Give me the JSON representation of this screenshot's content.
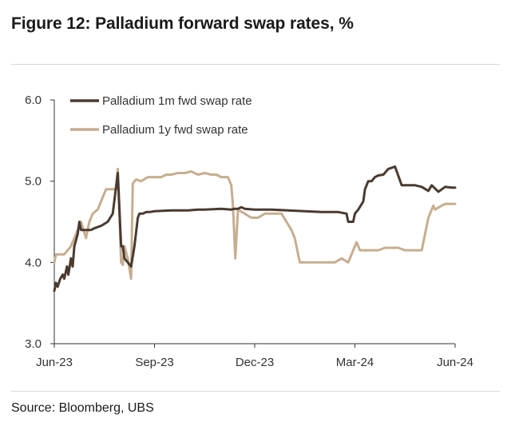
{
  "title": "Figure 12: Palladium forward swap rates, %",
  "source": "Source: Bloomberg, UBS",
  "chart_data": {
    "type": "line",
    "title": "Figure 12: Palladium forward swap rates, %",
    "xlabel": "",
    "ylabel": "",
    "ylim": [
      3.0,
      6.0
    ],
    "yticks": [
      "3.0",
      "4.0",
      "5.0",
      "6.0"
    ],
    "x_range": [
      0,
      12
    ],
    "xtick_labels": [
      "Jun-23",
      "Sep-23",
      "Dec-23",
      "Mar-24",
      "Jun-24"
    ],
    "xtick_positions": [
      0,
      3,
      6,
      9,
      12
    ],
    "legend": "top-left",
    "grid": false,
    "series": [
      {
        "name": "Palladium 1m fwd swap rate",
        "color": "#4a3a30",
        "x": [
          0.0,
          0.05,
          0.1,
          0.18,
          0.25,
          0.3,
          0.38,
          0.42,
          0.5,
          0.55,
          0.6,
          0.7,
          0.75,
          0.8,
          0.9,
          1.0,
          1.1,
          1.2,
          1.4,
          1.6,
          1.75,
          1.9,
          2.0,
          2.05,
          2.1,
          2.2,
          2.3,
          2.4,
          2.5,
          2.55,
          2.65,
          2.75,
          2.85,
          3.0,
          3.5,
          4.0,
          4.3,
          4.5,
          5.0,
          5.3,
          5.4,
          5.5,
          5.6,
          5.7,
          6.0,
          6.5,
          7.0,
          7.5,
          8.0,
          8.5,
          8.75,
          8.8,
          8.95,
          9.0,
          9.1,
          9.25,
          9.3,
          9.4,
          9.5,
          9.6,
          9.7,
          9.85,
          10.0,
          10.2,
          10.4,
          10.5,
          10.6,
          10.8,
          11.0,
          11.2,
          11.3,
          11.5,
          11.6,
          11.7,
          11.9,
          12.0
        ],
        "values": [
          3.65,
          3.75,
          3.7,
          3.8,
          3.85,
          3.8,
          3.95,
          3.85,
          4.05,
          3.95,
          4.2,
          4.35,
          4.5,
          4.4,
          4.4,
          4.4,
          4.4,
          4.42,
          4.45,
          4.5,
          4.6,
          5.1,
          4.2,
          4.2,
          4.05,
          4.0,
          3.95,
          4.2,
          4.55,
          4.6,
          4.6,
          4.62,
          4.62,
          4.63,
          4.64,
          4.64,
          4.65,
          4.65,
          4.66,
          4.65,
          4.66,
          4.66,
          4.68,
          4.66,
          4.65,
          4.65,
          4.64,
          4.63,
          4.62,
          4.62,
          4.6,
          4.5,
          4.5,
          4.6,
          4.65,
          4.75,
          4.9,
          5.0,
          5.0,
          5.05,
          5.07,
          5.08,
          5.15,
          5.18,
          4.95,
          4.95,
          4.95,
          4.95,
          4.93,
          4.88,
          4.95,
          4.87,
          4.9,
          4.93,
          4.92,
          4.92
        ]
      },
      {
        "name": "Palladium 1y fwd swap rate",
        "color": "#c6ae8f",
        "x": [
          0.0,
          0.05,
          0.1,
          0.3,
          0.5,
          0.65,
          0.8,
          0.95,
          1.05,
          1.15,
          1.3,
          1.55,
          1.7,
          1.85,
          1.9,
          2.0,
          2.05,
          2.1,
          2.2,
          2.3,
          2.35,
          2.4,
          2.45,
          2.6,
          2.8,
          3.0,
          3.2,
          3.35,
          3.5,
          3.7,
          3.9,
          4.1,
          4.3,
          4.5,
          4.7,
          4.85,
          5.0,
          5.2,
          5.3,
          5.35,
          5.42,
          5.5,
          5.7,
          5.9,
          6.1,
          6.3,
          6.5,
          6.8,
          7.1,
          7.2,
          7.35,
          7.5,
          7.8,
          8.1,
          8.4,
          8.6,
          8.8,
          9.0,
          9.05,
          9.15,
          9.3,
          9.5,
          9.7,
          9.9,
          10.1,
          10.3,
          10.5,
          10.6,
          10.8,
          11.0,
          11.2,
          11.35,
          11.4,
          11.6,
          11.7,
          11.8,
          12.0
        ],
        "values": [
          4.0,
          4.1,
          4.1,
          4.1,
          4.2,
          4.35,
          4.5,
          4.3,
          4.5,
          4.6,
          4.65,
          4.9,
          4.9,
          4.9,
          5.15,
          4.0,
          3.97,
          4.2,
          4.05,
          3.8,
          4.97,
          5.0,
          5.02,
          5.0,
          5.05,
          5.05,
          5.05,
          5.08,
          5.08,
          5.1,
          5.1,
          5.12,
          5.08,
          5.1,
          5.08,
          5.08,
          5.05,
          5.05,
          4.95,
          4.7,
          4.05,
          4.65,
          4.6,
          4.55,
          4.55,
          4.6,
          4.6,
          4.6,
          4.4,
          4.3,
          4.0,
          4.0,
          4.0,
          4.0,
          4.0,
          4.05,
          4.0,
          4.2,
          4.25,
          4.15,
          4.15,
          4.15,
          4.15,
          4.18,
          4.18,
          4.18,
          4.15,
          4.15,
          4.15,
          4.15,
          4.55,
          4.7,
          4.65,
          4.7,
          4.72,
          4.72,
          4.72
        ]
      }
    ]
  }
}
